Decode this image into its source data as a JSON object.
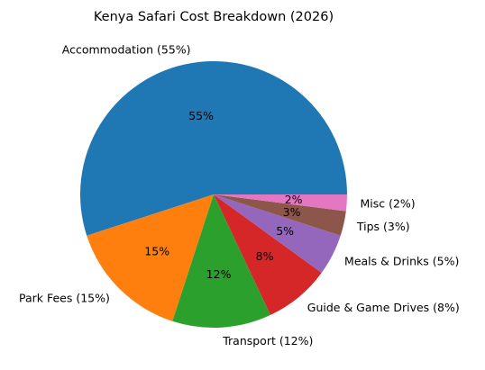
{
  "chart_data": {
    "type": "pie",
    "title": "Kenya Safari Cost Breakdown (2026)",
    "start_angle_deg": 0,
    "direction": "counterclockwise",
    "slices": [
      {
        "label": "Accommodation (55%)",
        "value": 55,
        "pct_label": "55%",
        "color": "#1f77b4"
      },
      {
        "label": "Park Fees (15%)",
        "value": 15,
        "pct_label": "15%",
        "color": "#ff7f0e"
      },
      {
        "label": "Transport (12%)",
        "value": 12,
        "pct_label": "12%",
        "color": "#2ca02c"
      },
      {
        "label": "Guide & Game Drives (8%)",
        "value": 8,
        "pct_label": "8%",
        "color": "#d62728"
      },
      {
        "label": "Meals & Drinks (5%)",
        "value": 5,
        "pct_label": "5%",
        "color": "#9467bd"
      },
      {
        "label": "Tips (3%)",
        "value": 3,
        "pct_label": "3%",
        "color": "#8c564b"
      },
      {
        "label": "Misc (2%)",
        "value": 2,
        "pct_label": "2%",
        "color": "#e377c2"
      }
    ]
  }
}
